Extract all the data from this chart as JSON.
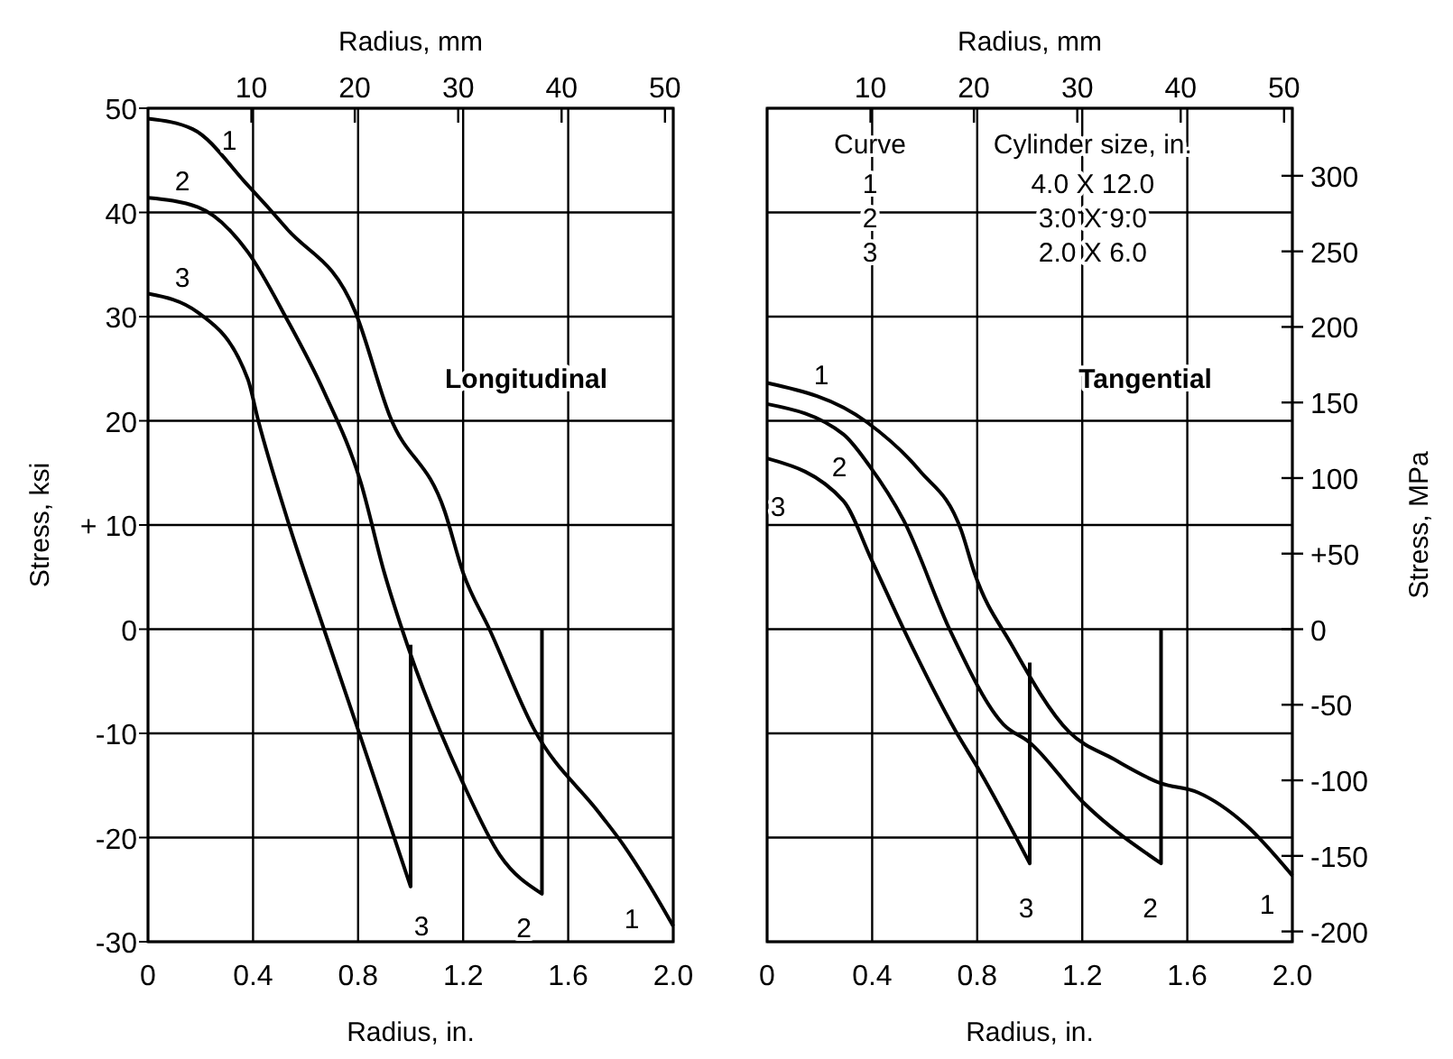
{
  "chart_data": [
    {
      "type": "line",
      "xlabel": "Radius, in.",
      "ylabel": "Stress, ksi",
      "x2label": "Radius, mm",
      "xlim": [
        0,
        2.0
      ],
      "xticks": [
        0,
        0.4,
        0.8,
        1.2,
        1.6,
        {
          "value": 2.0,
          "label": "2.0"
        }
      ],
      "x2lim": [
        0,
        50.8
      ],
      "x2ticks": [
        10,
        20,
        30,
        40,
        50
      ],
      "ylim": [
        -30,
        50
      ],
      "yticks": [
        -30,
        -20,
        -10,
        0,
        {
          "value": 10,
          "label": "+ 10"
        },
        20,
        30,
        40,
        50
      ],
      "grid": true,
      "annotations": [
        "Longitudinal"
      ],
      "series": [
        {
          "name": "1",
          "color": "#000000",
          "x": [
            0,
            0.17,
            0.38,
            0.53,
            0.79,
            0.92,
            1.13,
            1.2,
            1.3,
            1.47,
            1.72,
            1.81,
            1.9,
            2.0
          ],
          "values": [
            49,
            48,
            42.6,
            38.4,
            30.4,
            20.5,
            11.3,
            5.4,
            0,
            -9.6,
            -17.7,
            -20.7,
            -24.2,
            -28.5
          ]
        },
        {
          "name": "2",
          "color": "#000000",
          "x": [
            0,
            0.19,
            0.38,
            0.53,
            0.67,
            0.81,
            0.9,
            0.99,
            1.2,
            1.34,
            1.5,
            1.5
          ],
          "values": [
            41.4,
            40.5,
            36.2,
            29.7,
            22.8,
            14.1,
            5.4,
            -1.7,
            -14.8,
            -21.7,
            -25.4,
            0
          ]
        },
        {
          "name": "3",
          "color": "#000000",
          "x": [
            0,
            0.19,
            0.38,
            0.42,
            0.53,
            0.67,
            0.81,
            1.0,
            1.0
          ],
          "values": [
            32.2,
            30.4,
            24,
            20,
            10.6,
            0,
            -10.4,
            -24.7,
            -1.5
          ]
        }
      ]
    },
    {
      "type": "line",
      "xlabel": "Radius, in.",
      "y2label": "Stress, MPa",
      "x2label": "Radius, mm",
      "xlim": [
        0,
        2.0
      ],
      "xticks": [
        0,
        0.4,
        0.8,
        1.2,
        1.6,
        {
          "value": 2.0,
          "label": "2.0"
        }
      ],
      "x2lim": [
        0,
        50.8
      ],
      "x2ticks": [
        10,
        20,
        30,
        40,
        50
      ],
      "y2lim": [
        -206.8,
        344.7
      ],
      "y2ticks": [
        -200,
        -150,
        -100,
        -50,
        0,
        {
          "value": 50,
          "label": "+50"
        },
        100,
        150,
        200,
        250,
        300
      ],
      "grid": true,
      "annotations": [
        "Tangential",
        "Curve",
        "Cylinder size, in.",
        "1",
        "4.0 X 12.0",
        "2",
        "3.0 X 9.0",
        "3",
        "2.0 X 6.0"
      ],
      "series": [
        {
          "name": "1",
          "color": "#000000",
          "axis": "y2",
          "x": [
            0,
            0.38,
            0.58,
            0.74,
            0.79,
            0.93,
            1.15,
            1.32,
            1.5,
            1.64,
            1.82,
            2.0
          ],
          "values": [
            163,
            137,
            105,
            65,
            37,
            -10,
            -68,
            -86,
            -102,
            -108,
            -129,
            -163
          ]
        },
        {
          "name": "2",
          "color": "#000000",
          "axis": "y2",
          "x": [
            0,
            0.29,
            0.39,
            0.52,
            0.7,
            0.9,
            1.0,
            1.2,
            1.5,
            1.5
          ],
          "values": [
            149,
            129,
            108,
            72,
            -2,
            -63,
            -75,
            -114,
            -155,
            0
          ]
        },
        {
          "name": "3",
          "color": "#000000",
          "axis": "y2",
          "x": [
            0,
            0.29,
            0.4,
            0.52,
            0.72,
            0.81,
            1.0,
            1.0
          ],
          "values": [
            113,
            85,
            45,
            0,
            -68,
            -94,
            -155,
            -22
          ]
        }
      ]
    }
  ]
}
